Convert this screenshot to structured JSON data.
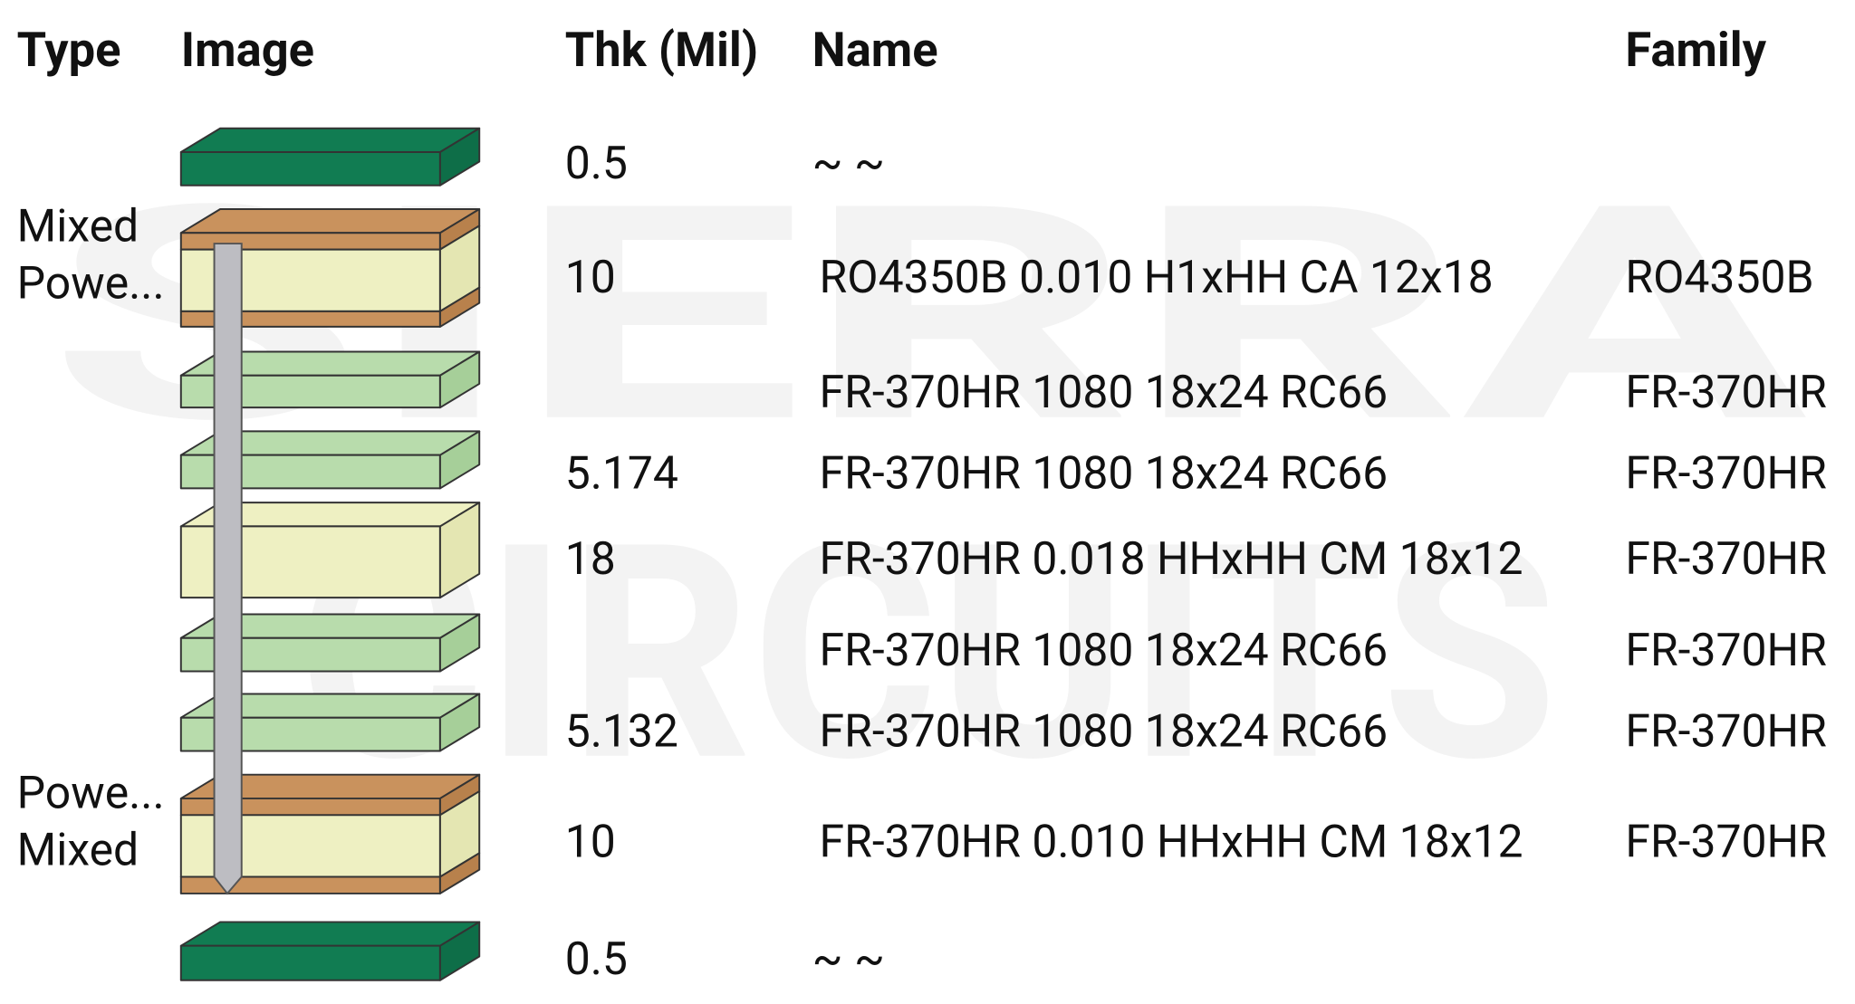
{
  "watermark": [
    "SIERRA",
    "CIRCUITS"
  ],
  "header": {
    "type": "Type",
    "image": "Image",
    "thk": "Thk (Mil)",
    "name": "Name",
    "family": "Family"
  },
  "rows": [
    {
      "type": null,
      "thk": "0.5",
      "name": "~ ~",
      "family": null
    },
    {
      "type": [
        "Mixed",
        "Powe..."
      ],
      "thk": "10",
      "name": "RO4350B 0.010 H1xHH CA 12x18",
      "family": "RO4350B"
    },
    {
      "type": null,
      "thk": null,
      "name": "FR-370HR 1080 18x24 RC66",
      "family": "FR-370HR"
    },
    {
      "type": null,
      "thk": "5.174",
      "name": "FR-370HR 1080 18x24 RC66",
      "family": "FR-370HR"
    },
    {
      "type": null,
      "thk": "18",
      "name": "FR-370HR 0.018 HHxHH CM 18x12",
      "family": "FR-370HR"
    },
    {
      "type": null,
      "thk": null,
      "name": "FR-370HR 1080 18x24 RC66",
      "family": "FR-370HR"
    },
    {
      "type": null,
      "thk": "5.132",
      "name": "FR-370HR 1080 18x24 RC66",
      "family": "FR-370HR"
    },
    {
      "type": [
        "Powe...",
        "Mixed"
      ],
      "thk": "10",
      "name": "FR-370HR 0.010 HHxHH CM 18x12",
      "family": "FR-370HR"
    },
    {
      "type": null,
      "thk": "0.5",
      "name": "~ ~",
      "family": null
    }
  ]
}
